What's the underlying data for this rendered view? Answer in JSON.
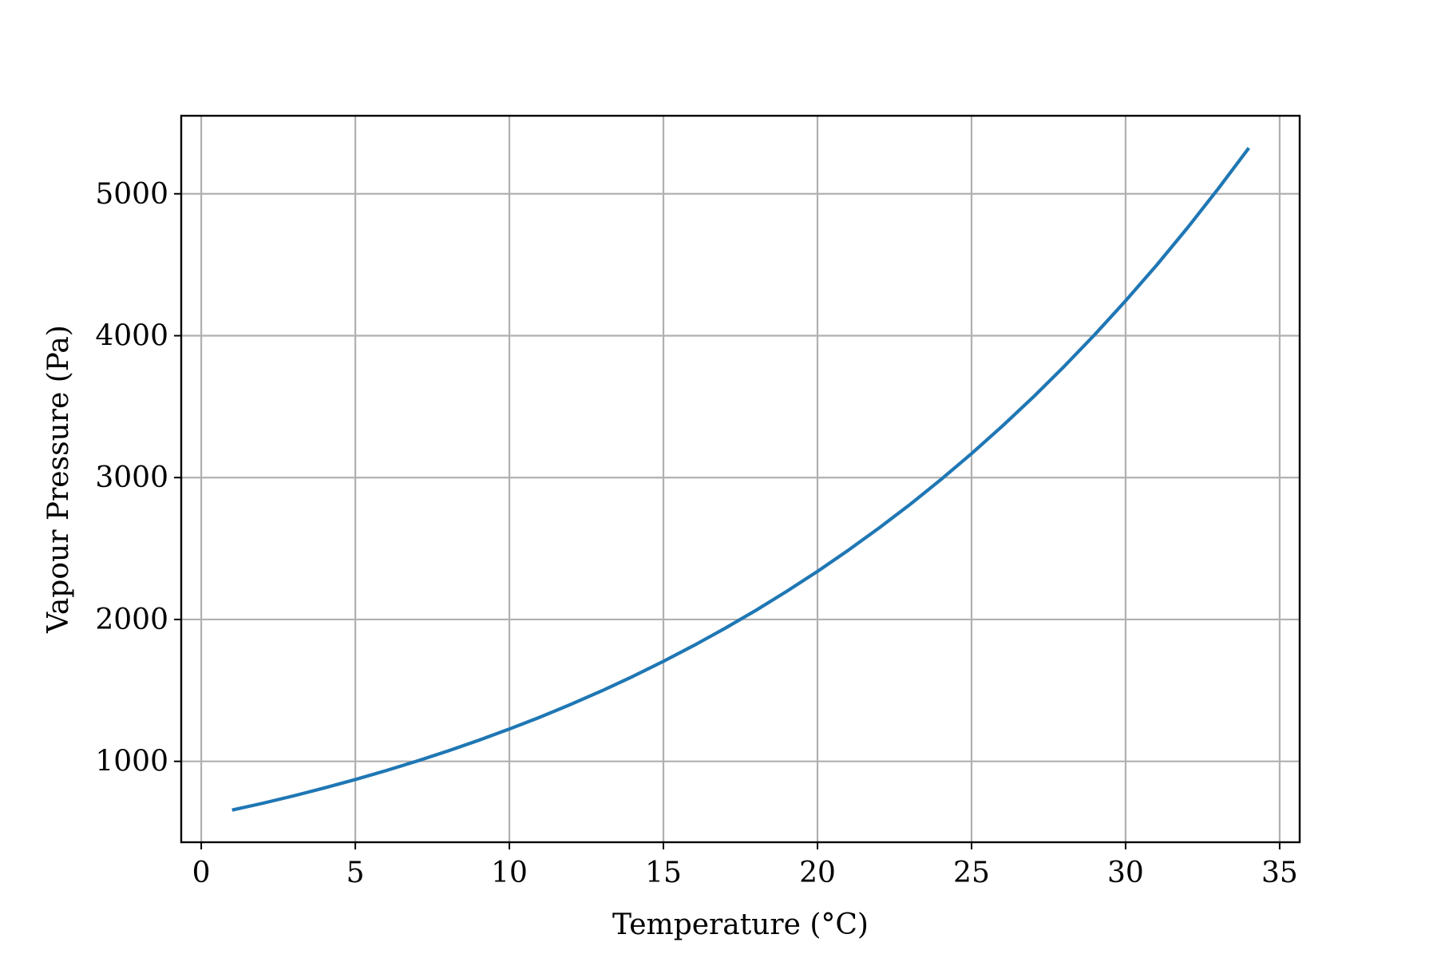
{
  "chart_data": {
    "type": "line",
    "title": "",
    "xlabel": "Temperature (°C)",
    "ylabel": "Vapour Pressure (Pa)",
    "xlim": [
      -0.65,
      35.65
    ],
    "ylim": [
      430,
      5550
    ],
    "xticks": [
      0,
      5,
      10,
      15,
      20,
      25,
      30,
      35
    ],
    "yticks": [
      1000,
      2000,
      3000,
      4000,
      5000
    ],
    "grid": true,
    "legend": "none",
    "series": [
      {
        "color": "#1f77b4",
        "x": [
          1,
          2,
          3,
          4,
          5,
          6,
          7,
          8,
          9,
          10,
          11,
          12,
          13,
          14,
          15,
          16,
          17,
          18,
          19,
          20,
          21,
          22,
          23,
          24,
          25,
          26,
          27,
          28,
          29,
          30,
          31,
          32,
          33,
          34
        ],
        "y": [
          657,
          705,
          757,
          813,
          872,
          935,
          1002,
          1073,
          1148,
          1228,
          1312,
          1402,
          1497,
          1598,
          1705,
          1818,
          1938,
          2064,
          2198,
          2339,
          2488,
          2645,
          2810,
          2985,
          3169,
          3363,
          3567,
          3782,
          4008,
          4246,
          4495,
          4758,
          5034,
          5323
        ]
      }
    ]
  }
}
